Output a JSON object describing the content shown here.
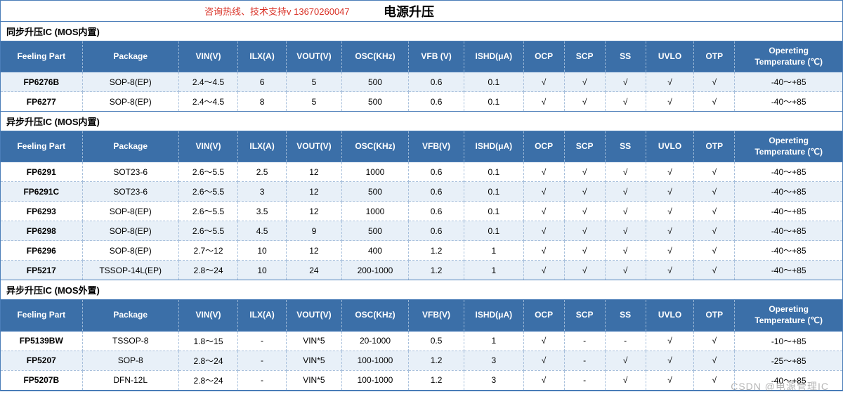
{
  "header": {
    "hotline": "咨询热线、技术支持v 13670260047",
    "title": "电源升压"
  },
  "columns": [
    "Feeling Part",
    "Package",
    "VIN(V)",
    "ILX(A)",
    "VOUT(V)",
    "OSC(KHz)",
    "VFB (V)",
    "ISHD(μA)",
    "OCP",
    "SCP",
    "SS",
    "UVLO",
    "OTP",
    "Opereting Temperature (℃)"
  ],
  "columns2": [
    "Feeling Part",
    "Package",
    "VIN(V)",
    "ILX(A)",
    "VOUT(V)",
    "OSC(KHz)",
    "VFB(V)",
    "ISHD(μA)",
    "OCP",
    "SCP",
    "SS",
    "UVLO",
    "OTP",
    "Opereting Temperature (℃)"
  ],
  "sections": [
    {
      "title": "同步升压IC (MOS内置)",
      "header_key": "columns",
      "rows": [
        {
          "alt": true,
          "cells": [
            "FP6276B",
            "SOP-8(EP)",
            "2.4～4.5",
            "6",
            "5",
            "500",
            "0.6",
            "0.1",
            "√",
            "√",
            "√",
            "√",
            "√",
            "-40～+85"
          ]
        },
        {
          "alt": false,
          "cells": [
            "FP6277",
            "SOP-8(EP)",
            "2.4～4.5",
            "8",
            "5",
            "500",
            "0.6",
            "0.1",
            "√",
            "√",
            "√",
            "√",
            "√",
            "-40～+85"
          ]
        }
      ]
    },
    {
      "title": "异步升压IC (MOS内置)",
      "header_key": "columns2",
      "rows": [
        {
          "alt": false,
          "cells": [
            "FP6291",
            "SOT23-6",
            "2.6～5.5",
            "2.5",
            "12",
            "1000",
            "0.6",
            "0.1",
            "√",
            "√",
            "√",
            "√",
            "√",
            "-40～+85"
          ]
        },
        {
          "alt": true,
          "cells": [
            "FP6291C",
            "SOT23-6",
            "2.6～5.5",
            "3",
            "12",
            "500",
            "0.6",
            "0.1",
            "√",
            "√",
            "√",
            "√",
            "√",
            "-40～+85"
          ]
        },
        {
          "alt": false,
          "cells": [
            "FP6293",
            "SOP-8(EP)",
            "2.6～5.5",
            "3.5",
            "12",
            "1000",
            "0.6",
            "0.1",
            "√",
            "√",
            "√",
            "√",
            "√",
            "-40～+85"
          ]
        },
        {
          "alt": true,
          "cells": [
            "FP6298",
            "SOP-8(EP)",
            "2.6～5.5",
            "4.5",
            "9",
            "500",
            "0.6",
            "0.1",
            "√",
            "√",
            "√",
            "√",
            "√",
            "-40～+85"
          ]
        },
        {
          "alt": false,
          "cells": [
            "FP6296",
            "SOP-8(EP)",
            "2.7～12",
            "10",
            "12",
            "400",
            "1.2",
            "1",
            "√",
            "√",
            "√",
            "√",
            "√",
            "-40～+85"
          ]
        },
        {
          "alt": true,
          "cells": [
            "FP5217",
            "TSSOP-14L(EP)",
            "2.8～24",
            "10",
            "24",
            "200-1000",
            "1.2",
            "1",
            "√",
            "√",
            "√",
            "√",
            "√",
            "-40～+85"
          ]
        }
      ]
    },
    {
      "title": "异步升压IC (MOS外置)",
      "header_key": "columns2",
      "rows": [
        {
          "alt": false,
          "cells": [
            "FP5139BW",
            "TSSOP-8",
            "1.8～15",
            "-",
            "VIN*5",
            "20-1000",
            "0.5",
            "1",
            "√",
            "-",
            "-",
            "√",
            "√",
            "-10～+85"
          ]
        },
        {
          "alt": true,
          "cells": [
            "FP5207",
            "SOP-8",
            "2.8～24",
            "-",
            "VIN*5",
            "100-1000",
            "1.2",
            "3",
            "√",
            "-",
            "√",
            "√",
            "√",
            "-25～+85"
          ]
        },
        {
          "alt": false,
          "cells": [
            "FP5207B",
            "DFN-12L",
            "2.8～24",
            "-",
            "VIN*5",
            "100-1000",
            "1.2",
            "3",
            "√",
            "-",
            "√",
            "√",
            "√",
            "-40～+85"
          ]
        }
      ]
    }
  ],
  "style": {
    "header_bg": "#3b6fa8",
    "header_fg": "#ffffff",
    "alt_row_bg": "#e8f0f8",
    "border_color": "#4a7db8",
    "dash_color": "#a8c0dc",
    "hotline_color": "#d93025"
  },
  "watermark": "CSDN @电源管理IC"
}
